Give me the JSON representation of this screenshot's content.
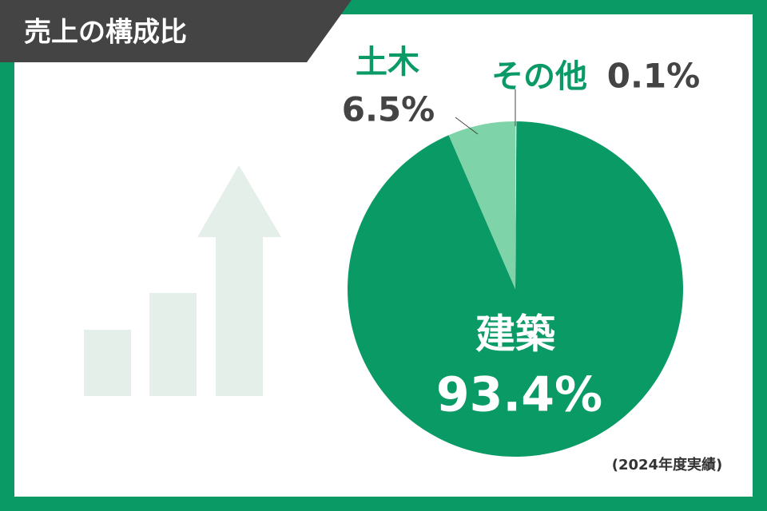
{
  "chart_data": {
    "type": "pie",
    "title": "売上の構成比",
    "categories": [
      "建築",
      "土木",
      "その他"
    ],
    "values": [
      93.4,
      6.5,
      0.1
    ],
    "value_labels": [
      "93.4%",
      "6.5%",
      "0.1%"
    ],
    "colors": [
      "#0a9a66",
      "#7fd3a8",
      "#cdeedd"
    ],
    "note": "(2024年度実績)"
  }
}
